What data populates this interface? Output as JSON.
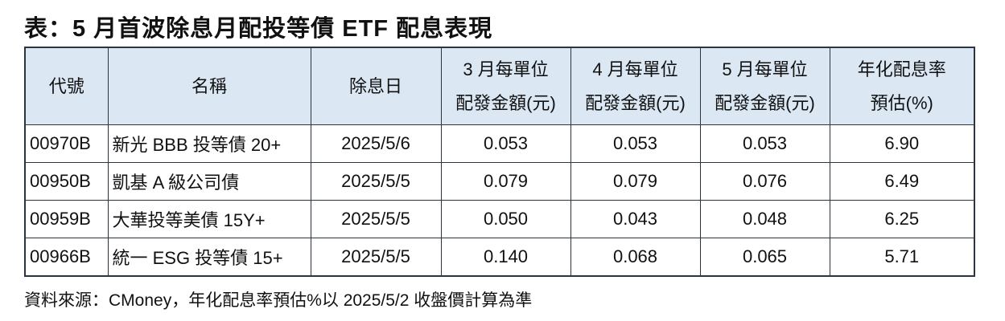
{
  "title": "表：5 月首波除息月配投等債 ETF 配息表現",
  "table": {
    "header": [
      [
        "代號"
      ],
      [
        "名稱"
      ],
      [
        "除息日"
      ],
      [
        "3 月每單位",
        "配發金額(元)"
      ],
      [
        "4 月每單位",
        "配發金額(元)"
      ],
      [
        "5 月每單位",
        "配發金額(元)"
      ],
      [
        "年化配息率",
        "預估(%)"
      ]
    ],
    "rows": [
      [
        "00970B",
        "新光 BBB 投等債 20+",
        "2025/5/6",
        "0.053",
        "0.053",
        "0.053",
        "6.90"
      ],
      [
        "00950B",
        "凱基 A 級公司債",
        "2025/5/5",
        "0.079",
        "0.079",
        "0.076",
        "6.49"
      ],
      [
        "00959B",
        "大華投等美債 15Y+",
        "2025/5/5",
        "0.050",
        "0.043",
        "0.048",
        "6.25"
      ],
      [
        "00966B",
        "統一 ESG 投等債 15+",
        "2025/5/5",
        "0.140",
        "0.068",
        "0.065",
        "5.71"
      ]
    ]
  },
  "footnote": "資料來源：CMoney，年化配息率預估%以 2025/5/2 收盤價計算為準"
}
